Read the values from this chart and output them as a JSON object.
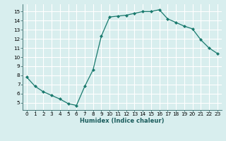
{
  "x": [
    0,
    1,
    2,
    3,
    4,
    5,
    6,
    7,
    8,
    9,
    10,
    11,
    12,
    13,
    14,
    15,
    16,
    17,
    18,
    19,
    20,
    21,
    22,
    23
  ],
  "y": [
    7.8,
    6.8,
    6.2,
    5.8,
    5.4,
    4.9,
    4.7,
    6.8,
    8.6,
    12.3,
    14.4,
    14.5,
    14.6,
    14.8,
    15.0,
    15.0,
    15.2,
    14.2,
    13.8,
    13.4,
    13.1,
    11.9,
    11.0,
    10.4
  ],
  "line_color": "#1a7a6e",
  "marker": "D",
  "marker_size": 2.0,
  "bg_color": "#d8eeee",
  "grid_color": "#ffffff",
  "xlabel": "Humidex (Indice chaleur)",
  "xlim": [
    -0.5,
    23.5
  ],
  "ylim": [
    4.2,
    15.8
  ],
  "xticks": [
    0,
    1,
    2,
    3,
    4,
    5,
    6,
    7,
    8,
    9,
    10,
    11,
    12,
    13,
    14,
    15,
    16,
    17,
    18,
    19,
    20,
    21,
    22,
    23
  ],
  "yticks": [
    5,
    6,
    7,
    8,
    9,
    10,
    11,
    12,
    13,
    14,
    15
  ],
  "xlabel_fontsize": 6.0,
  "tick_fontsize": 5.2
}
